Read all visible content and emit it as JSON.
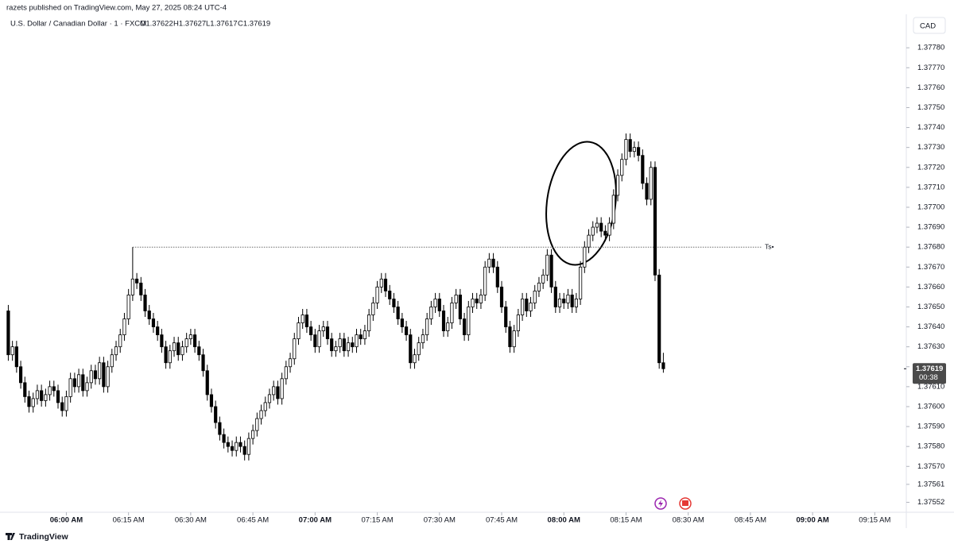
{
  "header": {
    "publisher": "razets published on TradingView.com, May 27, 2025 08:24 UTC-4",
    "symbol": "U.S. Dollar / Canadian Dollar · 1 · FXCM",
    "ohlc": [
      "O1.37622",
      "H1.37627",
      "L1.37617",
      "C1.37619"
    ],
    "currency": "CAD"
  },
  "footer": {
    "brand": "TradingView"
  },
  "chart_data": {
    "type": "candlestick",
    "xlim": [
      -2,
      216.6
    ],
    "xticks": [
      {
        "value": 14,
        "label": "06:00 AM"
      },
      {
        "value": 29,
        "label": "06:15 AM"
      },
      {
        "value": 44,
        "label": "06:30 AM"
      },
      {
        "value": 59,
        "label": "06:45 AM"
      },
      {
        "value": 74,
        "label": "07:00 AM"
      },
      {
        "value": 89,
        "label": "07:15 AM"
      },
      {
        "value": 104,
        "label": "07:30 AM"
      },
      {
        "value": 119,
        "label": "07:45 AM"
      },
      {
        "value": 134,
        "label": "08:00 AM"
      },
      {
        "value": 149,
        "label": "08:15 AM"
      },
      {
        "value": 164,
        "label": "08:30 AM"
      },
      {
        "value": 179,
        "label": "08:45 AM"
      },
      {
        "value": 194,
        "label": "09:00 AM"
      },
      {
        "value": 209,
        "label": "09:15 AM"
      }
    ],
    "ylim": [
      1.37547,
      1.37796
    ],
    "yticks": [
      {
        "value": 1.3778,
        "label": "1.37780"
      },
      {
        "value": 1.3777,
        "label": "1.37770"
      },
      {
        "value": 1.3776,
        "label": "1.37760"
      },
      {
        "value": 1.3775,
        "label": "1.37750"
      },
      {
        "value": 1.3774,
        "label": "1.37740"
      },
      {
        "value": 1.3773,
        "label": "1.37730"
      },
      {
        "value": 1.3772,
        "label": "1.37720"
      },
      {
        "value": 1.3771,
        "label": "1.37710"
      },
      {
        "value": 1.377,
        "label": "1.37700"
      },
      {
        "value": 1.3769,
        "label": "1.37690"
      },
      {
        "value": 1.3768,
        "label": "1.37680"
      },
      {
        "value": 1.3767,
        "label": "1.37670"
      },
      {
        "value": 1.3766,
        "label": "1.37660"
      },
      {
        "value": 1.3765,
        "label": "1.37650"
      },
      {
        "value": 1.3764,
        "label": "1.37640"
      },
      {
        "value": 1.3763,
        "label": "1.37630"
      },
      {
        "value": 1.3762,
        "label": "1.37620"
      },
      {
        "value": 1.3761,
        "label": "1.37610"
      },
      {
        "value": 1.376,
        "label": "1.37600"
      },
      {
        "value": 1.3759,
        "label": "1.37590"
      },
      {
        "value": 1.3758,
        "label": "1.37580"
      },
      {
        "value": 1.3757,
        "label": "1.37570"
      },
      1.37561,
      1.37552
    ],
    "hline": {
      "value": 1.3768,
      "label": "Ts•"
    },
    "price_tag": {
      "value": 1.37619,
      "label": "1.37619",
      "countdown": "00:38"
    },
    "up_color": "#ffffff",
    "down_color": "#000000",
    "wick_color": "#000000",
    "candles": [
      [
        1.37648,
        1.37651,
        1.37623,
        1.37626
      ],
      [
        1.37626,
        1.37633,
        1.37623,
        1.3763
      ],
      [
        1.3763,
        1.37633,
        1.37617,
        1.3762
      ],
      [
        1.3762,
        1.37623,
        1.37609,
        1.37612
      ],
      [
        1.37612,
        1.37615,
        1.37602,
        1.37605
      ],
      [
        1.37605,
        1.37608,
        1.37597,
        1.376
      ],
      [
        1.376,
        1.37607,
        1.37597,
        1.37604
      ],
      [
        1.37604,
        1.37611,
        1.37601,
        1.37608
      ],
      [
        1.37608,
        1.37611,
        1.376,
        1.37603
      ],
      [
        1.37603,
        1.37609,
        1.376,
        1.37606
      ],
      [
        1.37606,
        1.37613,
        1.37603,
        1.3761
      ],
      [
        1.3761,
        1.37613,
        1.37605,
        1.37608
      ],
      [
        1.37608,
        1.37611,
        1.37599,
        1.37602
      ],
      [
        1.37602,
        1.37605,
        1.37595,
        1.37598
      ],
      [
        1.37598,
        1.37608,
        1.37595,
        1.37605
      ],
      [
        1.37605,
        1.37617,
        1.37602,
        1.37614
      ],
      [
        1.37614,
        1.37617,
        1.37607,
        1.3761
      ],
      [
        1.3761,
        1.37619,
        1.37607,
        1.37616
      ],
      [
        1.37616,
        1.37619,
        1.37605,
        1.37608
      ],
      [
        1.37608,
        1.37615,
        1.37605,
        1.37612
      ],
      [
        1.37612,
        1.37621,
        1.37609,
        1.37618
      ],
      [
        1.37618,
        1.37621,
        1.37611,
        1.37614
      ],
      [
        1.37614,
        1.37625,
        1.37611,
        1.37622
      ],
      [
        1.37622,
        1.37625,
        1.37607,
        1.3761
      ],
      [
        1.3761,
        1.37623,
        1.37607,
        1.3762
      ],
      [
        1.3762,
        1.37629,
        1.37617,
        1.37626
      ],
      [
        1.37626,
        1.37633,
        1.37623,
        1.3763
      ],
      [
        1.3763,
        1.37639,
        1.37627,
        1.37636
      ],
      [
        1.37636,
        1.37647,
        1.37633,
        1.37644
      ],
      [
        1.37644,
        1.37659,
        1.37641,
        1.37656
      ],
      [
        1.37656,
        1.3768,
        1.37653,
        1.37664
      ],
      [
        1.37664,
        1.37667,
        1.37659,
        1.37662
      ],
      [
        1.37662,
        1.37665,
        1.37653,
        1.37656
      ],
      [
        1.37656,
        1.37659,
        1.37645,
        1.37648
      ],
      [
        1.37648,
        1.37651,
        1.37641,
        1.37644
      ],
      [
        1.37644,
        1.37647,
        1.37637,
        1.3764
      ],
      [
        1.3764,
        1.37643,
        1.37633,
        1.37636
      ],
      [
        1.37636,
        1.37639,
        1.37627,
        1.3763
      ],
      [
        1.3763,
        1.37633,
        1.37619,
        1.37622
      ],
      [
        1.37622,
        1.37631,
        1.37619,
        1.37628
      ],
      [
        1.37628,
        1.37635,
        1.37625,
        1.37632
      ],
      [
        1.37632,
        1.37635,
        1.37623,
        1.37626
      ],
      [
        1.37626,
        1.37633,
        1.37623,
        1.3763
      ],
      [
        1.3763,
        1.37637,
        1.37627,
        1.37634
      ],
      [
        1.37634,
        1.37639,
        1.37631,
        1.37636
      ],
      [
        1.37636,
        1.37639,
        1.37627,
        1.3763
      ],
      [
        1.3763,
        1.37633,
        1.37623,
        1.37626
      ],
      [
        1.37626,
        1.37629,
        1.37615,
        1.37618
      ],
      [
        1.37618,
        1.37621,
        1.37603,
        1.37606
      ],
      [
        1.37606,
        1.37609,
        1.37597,
        1.376
      ],
      [
        1.376,
        1.37603,
        1.37589,
        1.37592
      ],
      [
        1.37592,
        1.37595,
        1.37583,
        1.37586
      ],
      [
        1.37586,
        1.37589,
        1.37579,
        1.37582
      ],
      [
        1.37582,
        1.37585,
        1.37577,
        1.3758
      ],
      [
        1.3758,
        1.37583,
        1.37575,
        1.37578
      ],
      [
        1.37578,
        1.37585,
        1.37575,
        1.37582
      ],
      [
        1.37582,
        1.37585,
        1.37577,
        1.3758
      ],
      [
        1.3758,
        1.37583,
        1.37573,
        1.37576
      ],
      [
        1.37576,
        1.37587,
        1.37573,
        1.37584
      ],
      [
        1.37584,
        1.37591,
        1.37581,
        1.37588
      ],
      [
        1.37588,
        1.37597,
        1.37585,
        1.37594
      ],
      [
        1.37594,
        1.37601,
        1.37591,
        1.37598
      ],
      [
        1.37598,
        1.37605,
        1.37595,
        1.37602
      ],
      [
        1.37602,
        1.37609,
        1.37599,
        1.37606
      ],
      [
        1.37606,
        1.37613,
        1.37603,
        1.3761
      ],
      [
        1.3761,
        1.37613,
        1.37601,
        1.37604
      ],
      [
        1.37604,
        1.37617,
        1.37601,
        1.37614
      ],
      [
        1.37614,
        1.37623,
        1.37611,
        1.3762
      ],
      [
        1.3762,
        1.37627,
        1.37617,
        1.37624
      ],
      [
        1.37624,
        1.37637,
        1.37621,
        1.37634
      ],
      [
        1.37634,
        1.37645,
        1.37631,
        1.37642
      ],
      [
        1.37642,
        1.37649,
        1.37639,
        1.37646
      ],
      [
        1.37646,
        1.37649,
        1.37637,
        1.3764
      ],
      [
        1.3764,
        1.37643,
        1.37633,
        1.37636
      ],
      [
        1.37636,
        1.37639,
        1.37627,
        1.3763
      ],
      [
        1.3763,
        1.37641,
        1.37627,
        1.37638
      ],
      [
        1.37638,
        1.37643,
        1.37635,
        1.3764
      ],
      [
        1.3764,
        1.37643,
        1.37631,
        1.37634
      ],
      [
        1.37634,
        1.37637,
        1.37625,
        1.37628
      ],
      [
        1.37628,
        1.37633,
        1.37625,
        1.3763
      ],
      [
        1.3763,
        1.37637,
        1.37627,
        1.37634
      ],
      [
        1.37634,
        1.37637,
        1.37625,
        1.37628
      ],
      [
        1.37628,
        1.37635,
        1.37625,
        1.37632
      ],
      [
        1.37632,
        1.37635,
        1.37627,
        1.3763
      ],
      [
        1.3763,
        1.37639,
        1.37627,
        1.37636
      ],
      [
        1.37636,
        1.37639,
        1.37631,
        1.37634
      ],
      [
        1.37634,
        1.37641,
        1.37631,
        1.37638
      ],
      [
        1.37638,
        1.37649,
        1.37635,
        1.37646
      ],
      [
        1.37646,
        1.37655,
        1.37643,
        1.37652
      ],
      [
        1.37652,
        1.37663,
        1.37649,
        1.3766
      ],
      [
        1.3766,
        1.37667,
        1.37657,
        1.37664
      ],
      [
        1.37664,
        1.37667,
        1.37655,
        1.37658
      ],
      [
        1.37658,
        1.37661,
        1.37651,
        1.37654
      ],
      [
        1.37654,
        1.37657,
        1.37647,
        1.3765
      ],
      [
        1.3765,
        1.37653,
        1.37641,
        1.37644
      ],
      [
        1.37644,
        1.37647,
        1.37637,
        1.3764
      ],
      [
        1.3764,
        1.37643,
        1.37633,
        1.37636
      ],
      [
        1.37636,
        1.37639,
        1.37619,
        1.37622
      ],
      [
        1.37622,
        1.37629,
        1.37619,
        1.37626
      ],
      [
        1.37626,
        1.37635,
        1.37623,
        1.37632
      ],
      [
        1.37632,
        1.37639,
        1.37629,
        1.37636
      ],
      [
        1.37636,
        1.37647,
        1.37633,
        1.37644
      ],
      [
        1.37644,
        1.37653,
        1.37641,
        1.3765
      ],
      [
        1.3765,
        1.37657,
        1.37647,
        1.37654
      ],
      [
        1.37654,
        1.37657,
        1.37645,
        1.37648
      ],
      [
        1.37648,
        1.37651,
        1.37635,
        1.37638
      ],
      [
        1.37638,
        1.37645,
        1.37635,
        1.37642
      ],
      [
        1.37642,
        1.37655,
        1.37639,
        1.37652
      ],
      [
        1.37652,
        1.37659,
        1.37649,
        1.37656
      ],
      [
        1.37656,
        1.37659,
        1.37641,
        1.37644
      ],
      [
        1.37644,
        1.37647,
        1.37633,
        1.37636
      ],
      [
        1.37636,
        1.37653,
        1.37633,
        1.3765
      ],
      [
        1.3765,
        1.37657,
        1.37647,
        1.37654
      ],
      [
        1.37654,
        1.37657,
        1.37649,
        1.37652
      ],
      [
        1.37652,
        1.37659,
        1.37649,
        1.37656
      ],
      [
        1.37656,
        1.37673,
        1.37653,
        1.3767
      ],
      [
        1.3767,
        1.37677,
        1.37667,
        1.37674
      ],
      [
        1.37674,
        1.37677,
        1.37667,
        1.3767
      ],
      [
        1.3767,
        1.37673,
        1.37657,
        1.3766
      ],
      [
        1.3766,
        1.37663,
        1.37647,
        1.3765
      ],
      [
        1.3765,
        1.37653,
        1.37637,
        1.3764
      ],
      [
        1.3764,
        1.37643,
        1.37627,
        1.3763
      ],
      [
        1.3763,
        1.37641,
        1.37627,
        1.37638
      ],
      [
        1.37638,
        1.37649,
        1.37635,
        1.37646
      ],
      [
        1.37646,
        1.37657,
        1.37643,
        1.37654
      ],
      [
        1.37654,
        1.37657,
        1.37645,
        1.37648
      ],
      [
        1.37648,
        1.37655,
        1.37645,
        1.37652
      ],
      [
        1.37652,
        1.37661,
        1.37649,
        1.37658
      ],
      [
        1.37658,
        1.37665,
        1.37655,
        1.37662
      ],
      [
        1.37662,
        1.37669,
        1.37659,
        1.37666
      ],
      [
        1.37666,
        1.37679,
        1.37663,
        1.37676
      ],
      [
        1.37676,
        1.37679,
        1.37657,
        1.3766
      ],
      [
        1.3766,
        1.37663,
        1.37647,
        1.3765
      ],
      [
        1.3765,
        1.37657,
        1.37647,
        1.37654
      ],
      [
        1.37654,
        1.37657,
        1.37649,
        1.37652
      ],
      [
        1.37652,
        1.37659,
        1.37649,
        1.37656
      ],
      [
        1.37656,
        1.37659,
        1.37647,
        1.3765
      ],
      [
        1.3765,
        1.37657,
        1.37647,
        1.37654
      ],
      [
        1.37654,
        1.37673,
        1.37651,
        1.3767
      ],
      [
        1.3767,
        1.37683,
        1.37667,
        1.3768
      ],
      [
        1.3768,
        1.37689,
        1.37677,
        1.37686
      ],
      [
        1.37686,
        1.37693,
        1.37683,
        1.3769
      ],
      [
        1.3769,
        1.37695,
        1.37687,
        1.37692
      ],
      [
        1.37692,
        1.37695,
        1.37685,
        1.37688
      ],
      [
        1.37688,
        1.37691,
        1.37683,
        1.37686
      ],
      [
        1.37686,
        1.37695,
        1.37683,
        1.37692
      ],
      [
        1.37692,
        1.37709,
        1.37689,
        1.37706
      ],
      [
        1.37706,
        1.37719,
        1.37703,
        1.37716
      ],
      [
        1.37716,
        1.37727,
        1.37713,
        1.37724
      ],
      [
        1.37724,
        1.37737,
        1.37721,
        1.37734
      ],
      [
        1.37734,
        1.37737,
        1.37725,
        1.37728
      ],
      [
        1.37728,
        1.37733,
        1.37725,
        1.3773
      ],
      [
        1.3773,
        1.37733,
        1.37723,
        1.37726
      ],
      [
        1.37726,
        1.37729,
        1.37709,
        1.37712
      ],
      [
        1.37712,
        1.37715,
        1.37701,
        1.37704
      ],
      [
        1.37704,
        1.37723,
        1.37701,
        1.3772
      ],
      [
        1.3772,
        1.37723,
        1.37663,
        1.37666
      ],
      [
        1.37666,
        1.37669,
        1.37619,
        1.37622
      ],
      [
        1.37622,
        1.37627,
        1.37617,
        1.37619
      ]
    ]
  }
}
